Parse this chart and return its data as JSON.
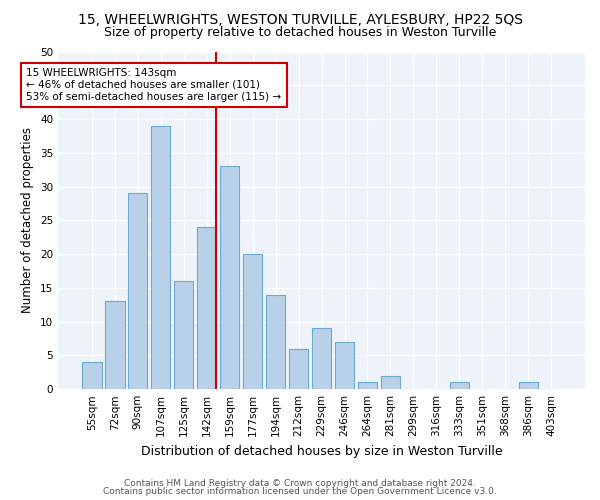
{
  "title": "15, WHEELWRIGHTS, WESTON TURVILLE, AYLESBURY, HP22 5QS",
  "subtitle": "Size of property relative to detached houses in Weston Turville",
  "xlabel": "Distribution of detached houses by size in Weston Turville",
  "ylabel": "Number of detached properties",
  "footnote1": "Contains HM Land Registry data © Crown copyright and database right 2024.",
  "footnote2": "Contains public sector information licensed under the Open Government Licence v3.0.",
  "bar_labels": [
    "55sqm",
    "72sqm",
    "90sqm",
    "107sqm",
    "125sqm",
    "142sqm",
    "159sqm",
    "177sqm",
    "194sqm",
    "212sqm",
    "229sqm",
    "246sqm",
    "264sqm",
    "281sqm",
    "299sqm",
    "316sqm",
    "333sqm",
    "351sqm",
    "368sqm",
    "386sqm",
    "403sqm"
  ],
  "bar_values": [
    4,
    13,
    29,
    39,
    16,
    24,
    33,
    20,
    14,
    6,
    9,
    7,
    1,
    2,
    0,
    0,
    1,
    0,
    0,
    1,
    0
  ],
  "bar_color": "#b8d0e8",
  "bar_edgecolor": "#6aaad4",
  "bg_color": "#eef2f9",
  "grid_color": "#ffffff",
  "annotation_text": "15 WHEELWRIGHTS: 143sqm\n← 46% of detached houses are smaller (101)\n53% of semi-detached houses are larger (115) →",
  "annotation_box_edgecolor": "#cc0000",
  "vline_color": "#cc0000",
  "ylim": [
    0,
    50
  ],
  "yticks": [
    0,
    5,
    10,
    15,
    20,
    25,
    30,
    35,
    40,
    45,
    50
  ],
  "title_fontsize": 10,
  "subtitle_fontsize": 9,
  "xlabel_fontsize": 9,
  "ylabel_fontsize": 8.5,
  "tick_fontsize": 7.5,
  "annotation_fontsize": 7.5,
  "footnote_fontsize": 6.5
}
